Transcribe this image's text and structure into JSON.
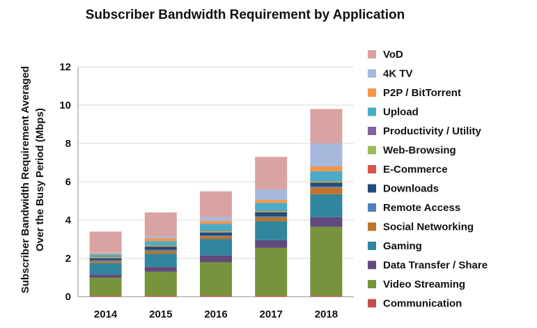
{
  "chart_data": {
    "type": "bar",
    "stacked": true,
    "title": "Subscriber Bandwidth Requirement by Application",
    "xlabel": "",
    "ylabel": "Subscriber Bandwidth Requirement Averaged Over the Busy Period (Mbps)",
    "ylabel_lines": [
      "Subscriber Bandwidth Requirement Averaged",
      "Over the Busy Period (Mbps)"
    ],
    "ylim": [
      0,
      12
    ],
    "yticks": [
      "0",
      "2",
      "4",
      "6",
      "8",
      "10",
      "12"
    ],
    "grid": true,
    "legend_position": "right",
    "categories": [
      "2014",
      "2015",
      "2016",
      "2017",
      "2018"
    ],
    "series": [
      {
        "name": "Communication",
        "color": "#c0504d",
        "values": [
          0.05,
          0.05,
          0.05,
          0.05,
          0.05
        ]
      },
      {
        "name": "Video Streaming",
        "color": "#77933c",
        "values": [
          0.95,
          1.25,
          1.75,
          2.5,
          3.6
        ]
      },
      {
        "name": "Data Transfer / Share",
        "color": "#604a7b",
        "values": [
          0.15,
          0.25,
          0.35,
          0.4,
          0.5
        ]
      },
      {
        "name": "Gaming",
        "color": "#31859c",
        "values": [
          0.6,
          0.7,
          0.85,
          1.0,
          1.2
        ]
      },
      {
        "name": "Social Networking",
        "color": "#c0722c",
        "values": [
          0.1,
          0.15,
          0.15,
          0.2,
          0.35
        ]
      },
      {
        "name": "Remote Access",
        "color": "#4f81bd",
        "values": [
          0.05,
          0.05,
          0.05,
          0.05,
          0.05
        ]
      },
      {
        "name": "Downloads",
        "color": "#1f4e79",
        "values": [
          0.1,
          0.15,
          0.15,
          0.2,
          0.2
        ]
      },
      {
        "name": "E-Commerce",
        "color": "#d9534f",
        "values": [
          0.02,
          0.02,
          0.02,
          0.02,
          0.02
        ]
      },
      {
        "name": "Web-Browsing",
        "color": "#9bbb59",
        "values": [
          0.05,
          0.05,
          0.05,
          0.05,
          0.05
        ]
      },
      {
        "name": "Productivity / Utility",
        "color": "#8064a2",
        "values": [
          0.03,
          0.03,
          0.03,
          0.03,
          0.03
        ]
      },
      {
        "name": "Upload",
        "color": "#4bacc6",
        "values": [
          0.1,
          0.2,
          0.35,
          0.4,
          0.5
        ]
      },
      {
        "name": "P2P / BitTorrent",
        "color": "#f79646",
        "values": [
          0.05,
          0.15,
          0.15,
          0.15,
          0.25
        ]
      },
      {
        "name": "4K TV",
        "color": "#a6b9dc",
        "values": [
          0.05,
          0.1,
          0.2,
          0.55,
          1.2
        ]
      },
      {
        "name": "VoD",
        "color": "#d9a3a3",
        "values": [
          1.1,
          1.25,
          1.35,
          1.7,
          1.8
        ]
      }
    ]
  }
}
